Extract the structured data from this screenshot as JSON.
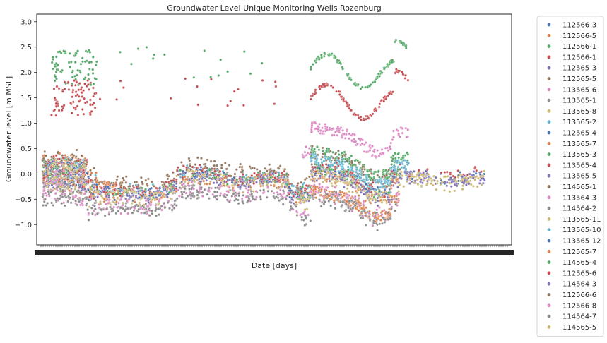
{
  "chart_data": {
    "type": "scatter",
    "title": "Groundwater Level Unique Monitoring Wells Rozenburg",
    "xlabel": "Date [days]",
    "ylabel": "Groundwater level [m MSL]",
    "ylim": [
      -1.4,
      3.15
    ],
    "yticks": [
      "3.0",
      "2.5",
      "2.0",
      "1.5",
      "1.0",
      "0.5",
      "0.0",
      "−0.5",
      "−1.0"
    ],
    "ytick_values": [
      3.0,
      2.5,
      2.0,
      1.5,
      1.0,
      0.5,
      0.0,
      -0.5,
      -1.0
    ],
    "grid": false,
    "legend_position": "outside-right",
    "series": [
      {
        "name": "112566-3",
        "color": "#4c72b0",
        "center": 0.0,
        "offset": 0.0,
        "t0": 0.0,
        "t1": 0.7
      },
      {
        "name": "112566-5",
        "color": "#dd8452",
        "center": 0.05,
        "offset": 0.15,
        "t0": 0.0,
        "t1": 0.18
      },
      {
        "name": "112566-1",
        "color": "#55a868",
        "center": 2.1,
        "offset": 0.0,
        "t0": 0.0,
        "t1": 0.82
      },
      {
        "name": "112566-1",
        "color": "#c44e52",
        "center": 1.5,
        "offset": 0.0,
        "t0": 0.0,
        "t1": 0.82
      },
      {
        "name": "112565-3",
        "color": "#8172b3",
        "center": -0.1,
        "offset": -0.05,
        "t0": 0.0,
        "t1": 0.99
      },
      {
        "name": "112565-5",
        "color": "#937860",
        "center": 0.15,
        "offset": 0.15,
        "t0": 0.0,
        "t1": 0.8
      },
      {
        "name": "113565-6",
        "color": "#da8bc3",
        "center": -0.4,
        "offset": -0.3,
        "t0": 0.0,
        "t1": 0.8
      },
      {
        "name": "113565-1",
        "color": "#8c8c8c",
        "center": -0.2,
        "offset": -0.25,
        "t0": 0.0,
        "t1": 0.75
      },
      {
        "name": "113565-8",
        "color": "#ccb974",
        "center": -0.1,
        "offset": -0.1,
        "t0": 0.0,
        "t1": 0.99
      },
      {
        "name": "113565-2",
        "color": "#64b5cd",
        "center": 0.1,
        "offset": 0.1,
        "t0": 0.0,
        "t1": 0.8
      },
      {
        "name": "112565-4",
        "color": "#4c72b0",
        "center": 0.1,
        "offset": 0.05,
        "t0": 0.0,
        "t1": 0.99
      },
      {
        "name": "113565-7",
        "color": "#dd8452",
        "center": -0.2,
        "offset": -0.25,
        "t0": 0.6,
        "t1": 0.8
      },
      {
        "name": "113565-3",
        "color": "#55a868",
        "center": 0.2,
        "offset": 0.25,
        "t0": 0.6,
        "t1": 0.82
      },
      {
        "name": "113565-4",
        "color": "#c44e52",
        "center": 0.1,
        "offset": 0.1,
        "t0": 0.0,
        "t1": 0.99
      },
      {
        "name": "113565-5",
        "color": "#8172b3",
        "center": 0.0,
        "offset": 0.0,
        "t0": 0.0,
        "t1": 0.99
      },
      {
        "name": "114565-1",
        "color": "#937860",
        "center": 0.1,
        "offset": 0.05,
        "t0": 0.0,
        "t1": 0.8
      },
      {
        "name": "113564-3",
        "color": "#da8bc3",
        "center": 0.6,
        "offset": 0.55,
        "t0": 0.58,
        "t1": 0.82
      },
      {
        "name": "114564-2",
        "color": "#8c8c8c",
        "center": -0.3,
        "offset": -0.35,
        "t0": 0.0,
        "t1": 0.8
      },
      {
        "name": "113565-11",
        "color": "#ccb974",
        "center": 0.0,
        "offset": 0.0,
        "t0": 0.0,
        "t1": 0.99
      },
      {
        "name": "113565-10",
        "color": "#64b5cd",
        "center": 0.2,
        "offset": 0.15,
        "t0": 0.6,
        "t1": 0.82
      },
      {
        "name": "113565-12",
        "color": "#4c72b0",
        "center": 0.1,
        "offset": 0.05,
        "t0": 0.0,
        "t1": 0.8
      },
      {
        "name": "112565-7",
        "color": "#dd8452",
        "center": 0.0,
        "offset": -0.05,
        "t0": 0.0,
        "t1": 0.8
      },
      {
        "name": "114565-4",
        "color": "#55a868",
        "center": 0.1,
        "offset": 0.05,
        "t0": 0.0,
        "t1": 0.8
      },
      {
        "name": "112565-6",
        "color": "#c44e52",
        "center": 0.05,
        "offset": 0.05,
        "t0": 0.0,
        "t1": 0.8
      },
      {
        "name": "114564-3",
        "color": "#8172b3",
        "center": 0.0,
        "offset": 0.0,
        "t0": 0.0,
        "t1": 0.99
      },
      {
        "name": "112566-6",
        "color": "#937860",
        "center": 0.2,
        "offset": 0.25,
        "t0": 0.0,
        "t1": 0.8
      },
      {
        "name": "112566-8",
        "color": "#da8bc3",
        "center": -0.2,
        "offset": -0.2,
        "t0": 0.0,
        "t1": 0.8
      },
      {
        "name": "114564-7",
        "color": "#8c8c8c",
        "center": -0.3,
        "offset": -0.3,
        "t0": 0.0,
        "t1": 0.8
      },
      {
        "name": "114565-5",
        "color": "#ccb974",
        "center": 0.0,
        "offset": 0.0,
        "t0": 0.0,
        "t1": 0.99
      }
    ]
  }
}
